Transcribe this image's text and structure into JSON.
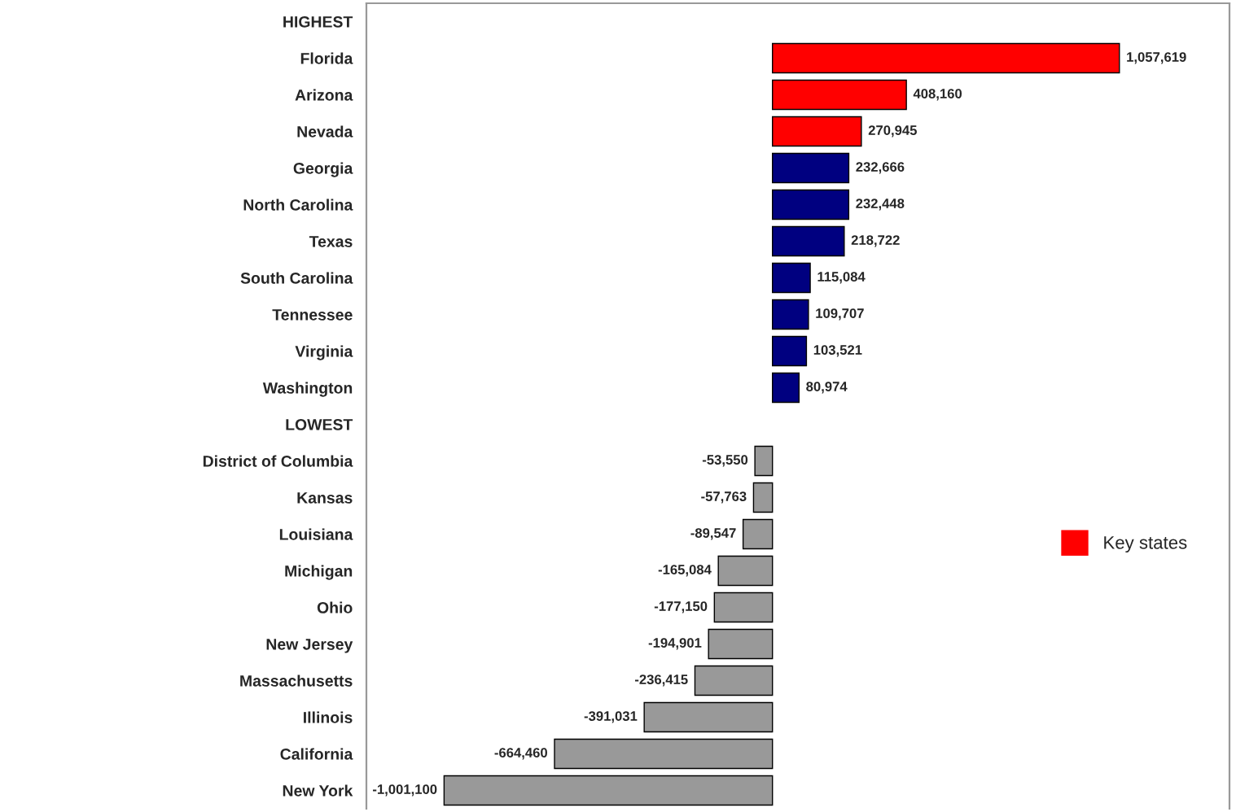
{
  "chart_data": {
    "type": "bar",
    "orientation": "horizontal",
    "categories": [
      "HIGHEST",
      "Florida",
      "Arizona",
      "Nevada",
      "Georgia",
      "North Carolina",
      "Texas",
      "South Carolina",
      "Tennessee",
      "Virginia",
      "Washington",
      "LOWEST",
      "District of Columbia",
      "Kansas",
      "Louisiana",
      "Michigan",
      "Ohio",
      "New Jersey",
      "Massachusetts",
      "Illinois",
      "California",
      "New York"
    ],
    "series": [
      {
        "name": "Key states",
        "color": "#ff0000",
        "values": [
          null,
          1057619,
          408160,
          270945,
          null,
          null,
          null,
          null,
          null,
          null,
          null,
          null,
          null,
          null,
          null,
          null,
          null,
          null,
          null,
          null,
          null,
          null
        ],
        "value_labels": [
          null,
          "1,057,619",
          "408,160",
          "270,945",
          null,
          null,
          null,
          null,
          null,
          null,
          null,
          null,
          null,
          null,
          null,
          null,
          null,
          null,
          null,
          null,
          null,
          null
        ]
      },
      {
        "colors": [
          "#999999",
          "#ff0000",
          "#ff0000",
          "#ff0000",
          "#000080",
          "#000080",
          "#000080",
          "#000080",
          "#000080",
          "#000080",
          "#000080",
          "#999999",
          "#999999",
          "#999999",
          "#999999",
          "#999999",
          "#999999",
          "#999999",
          "#999999",
          "#999999",
          "#999999",
          "#999999"
        ],
        "values": [
          null,
          null,
          null,
          null,
          232666,
          232448,
          218722,
          115084,
          109707,
          103521,
          80974,
          null,
          -53550,
          -57763,
          -89547,
          -165084,
          -177150,
          -194901,
          -236415,
          -391031,
          -664460,
          -1001100
        ],
        "value_labels": [
          null,
          null,
          null,
          null,
          "232,666",
          "232,448",
          "218,722",
          "115,084",
          "109,707",
          "103,521",
          "80,974",
          null,
          "-53,550",
          "-57,763",
          "-89,547",
          "-165,084",
          "-177,150",
          "-194,901",
          "-236,415",
          "-391,031",
          "-664,460",
          "-1,001,100"
        ]
      }
    ],
    "tick_labels": "y",
    "legend": "right",
    "grid": false
  }
}
